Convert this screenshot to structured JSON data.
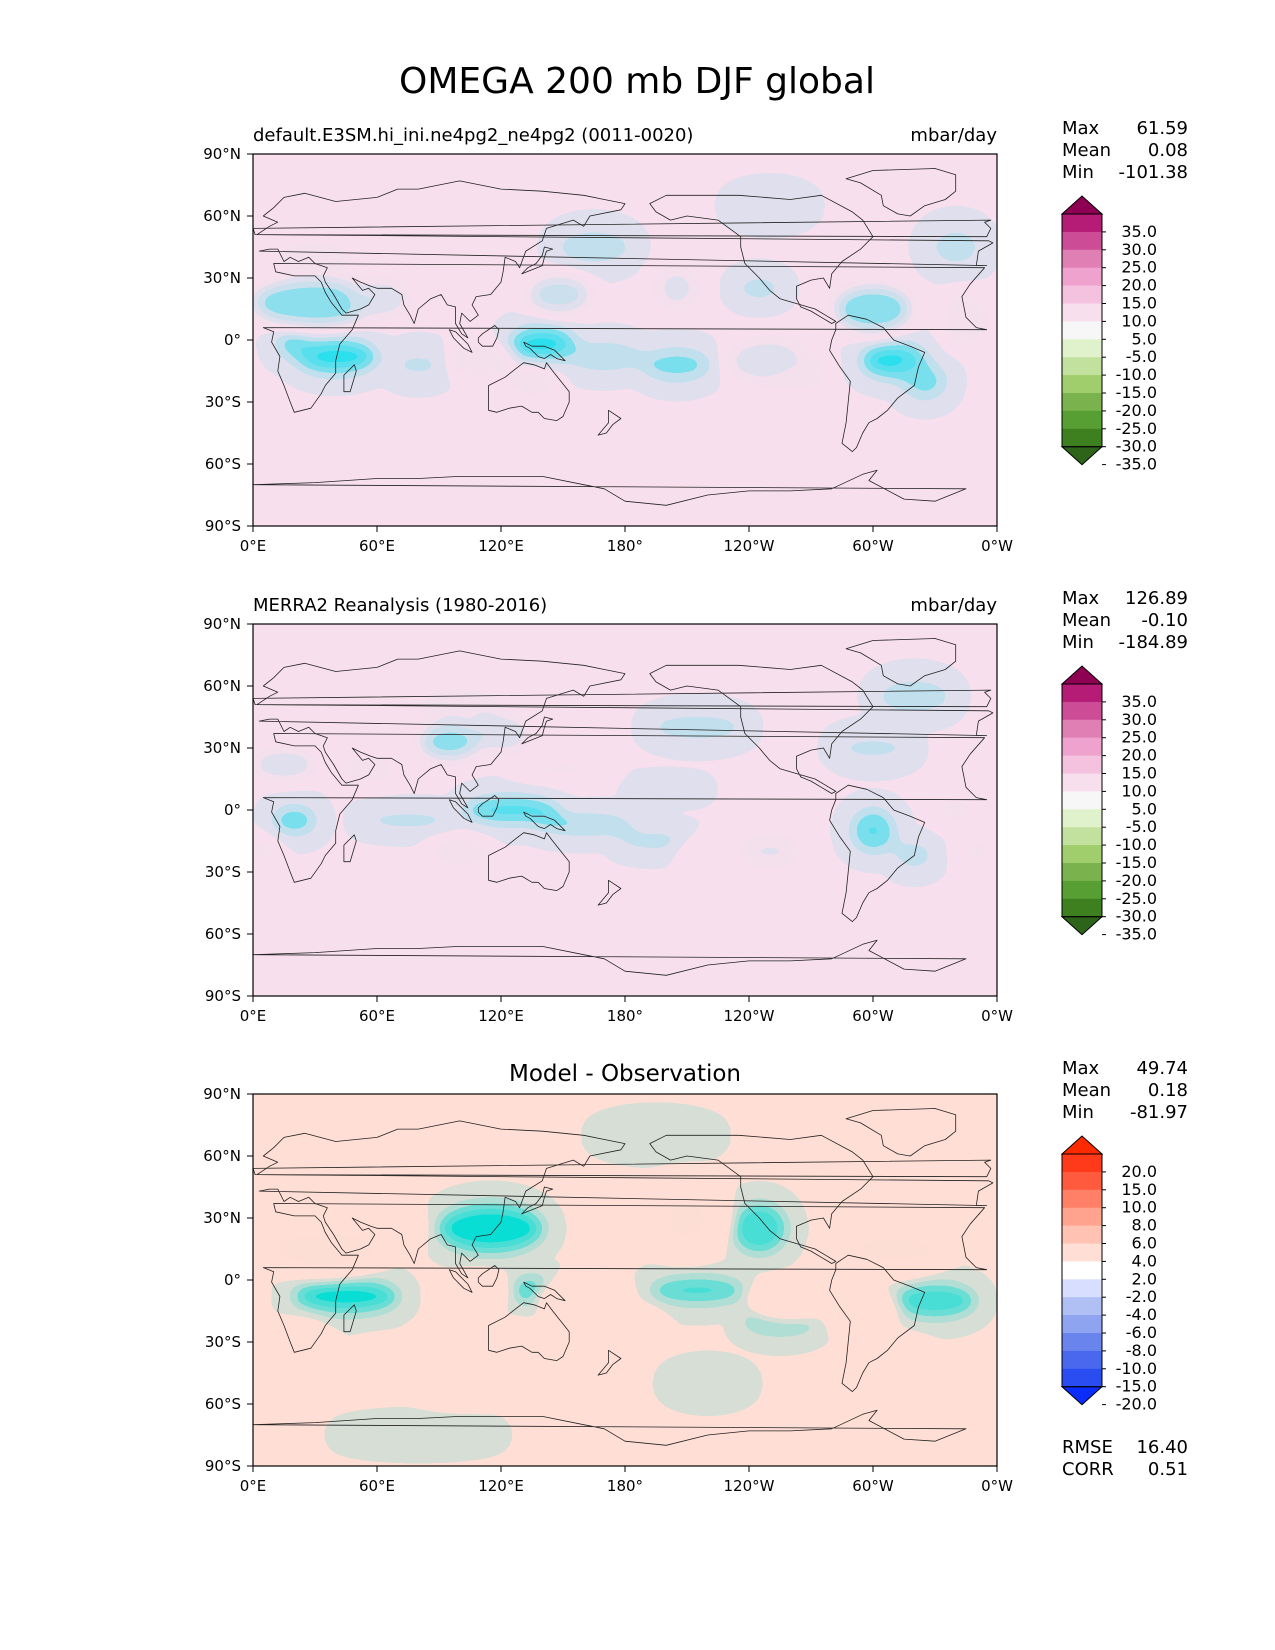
{
  "figure": {
    "title": "OMEGA 200 mb DJF global"
  },
  "axes": {
    "lon_ticks": [
      "0°E",
      "60°E",
      "120°E",
      "180°",
      "120°W",
      "60°W",
      "0°W"
    ],
    "lat_ticks": [
      "90°N",
      "60°N",
      "30°N",
      "0°",
      "30°S",
      "60°S",
      "90°S"
    ]
  },
  "panels": [
    {
      "left_title": "default.E3SM.hi_ini.ne4pg2_ne4pg2 (0011-0020)",
      "center_title": "",
      "units": "mbar/day",
      "stats": [
        {
          "label": "Max",
          "value": "61.59"
        },
        {
          "label": "Mean",
          "value": "0.08"
        },
        {
          "label": "Min",
          "value": "-101.38"
        }
      ],
      "colorbar": {
        "colors": [
          "#2d6419",
          "#3e7f1f",
          "#589f33",
          "#7ab24d",
          "#a1ce6c",
          "#c2e19f",
          "#e0f2cb",
          "#f7f7f7",
          "#f8dfee",
          "#f4c1de",
          "#eea2cd",
          "#df7fb4",
          "#cc4d95",
          "#b41c76",
          "#8e0152"
        ],
        "labels": [
          "35.0",
          "30.0",
          "25.0",
          "20.0",
          "15.0",
          "10.0",
          "5.0",
          "-5.0",
          "-10.0",
          "-15.0",
          "-20.0",
          "-25.0",
          "-30.0",
          "-35.0"
        ]
      }
    },
    {
      "left_title": "MERRA2 Reanalysis (1980-2016)",
      "center_title": "",
      "units": "mbar/day",
      "stats": [
        {
          "label": "Max",
          "value": "126.89"
        },
        {
          "label": "Mean",
          "value": "-0.10"
        },
        {
          "label": "Min",
          "value": "-184.89"
        }
      ],
      "colorbar": {
        "colors": [
          "#2d6419",
          "#3e7f1f",
          "#589f33",
          "#7ab24d",
          "#a1ce6c",
          "#c2e19f",
          "#e0f2cb",
          "#f7f7f7",
          "#f8dfee",
          "#f4c1de",
          "#eea2cd",
          "#df7fb4",
          "#cc4d95",
          "#b41c76",
          "#8e0152"
        ],
        "labels": [
          "35.0",
          "30.0",
          "25.0",
          "20.0",
          "15.0",
          "10.0",
          "5.0",
          "-5.0",
          "-10.0",
          "-15.0",
          "-20.0",
          "-25.0",
          "-30.0",
          "-35.0"
        ]
      }
    },
    {
      "left_title": "",
      "center_title": "Model - Observation",
      "units": "",
      "stats": [
        {
          "label": "Max",
          "value": "49.74"
        },
        {
          "label": "Mean",
          "value": "0.18"
        },
        {
          "label": "Min",
          "value": "-81.97"
        }
      ],
      "bottom_stats": [
        {
          "label": "RMSE",
          "value": "16.40"
        },
        {
          "label": "CORR",
          "value": "0.51"
        }
      ],
      "colorbar": {
        "colors": [
          "#0a2dfa",
          "#2a4df2",
          "#4a68ee",
          "#6a84ee",
          "#8ea4f0",
          "#b1c0f4",
          "#d7deff",
          "#ffffff",
          "#ffded6",
          "#ffc2b3",
          "#ffa38f",
          "#ff8066",
          "#ff5a3d",
          "#ff3a1a",
          "#fd2a00"
        ],
        "labels": [
          "20.0",
          "15.0",
          "10.0",
          "8.0",
          "6.0",
          "4.0",
          "2.0",
          "-2.0",
          "-4.0",
          "-6.0",
          "-8.0",
          "-10.0",
          "-15.0",
          "-20.0"
        ]
      }
    }
  ],
  "chart_data": [
    {
      "type": "heatmap",
      "title": "default.E3SM.hi_ini.ne4pg2_ne4pg2 (0011-0020)",
      "units": "mbar/day",
      "x_ticks": [
        "0°E",
        "60°E",
        "120°E",
        "180°",
        "120°W",
        "60°W",
        "0°W"
      ],
      "y_ticks": [
        "90°N",
        "60°N",
        "30°N",
        "0°",
        "30°S",
        "60°S",
        "90°S"
      ],
      "xlim": [
        0,
        360
      ],
      "ylim": [
        -90,
        90
      ],
      "levels": [
        -35,
        -30,
        -25,
        -20,
        -15,
        -10,
        -5,
        5,
        10,
        15,
        20,
        25,
        30,
        35
      ],
      "features": [
        {
          "lon": 30,
          "lat": 18,
          "w": 30,
          "h": 10,
          "v": 45
        },
        {
          "lon": 60,
          "lat": 20,
          "w": 15,
          "h": 8,
          "v": 25
        },
        {
          "lon": 40,
          "lat": -8,
          "w": 22,
          "h": 10,
          "v": -45
        },
        {
          "lon": 20,
          "lat": -2,
          "w": 10,
          "h": 8,
          "v": -25
        },
        {
          "lon": 140,
          "lat": -2,
          "w": 18,
          "h": 10,
          "v": -45
        },
        {
          "lon": 148,
          "lat": 22,
          "w": 15,
          "h": 8,
          "v": 30
        },
        {
          "lon": 170,
          "lat": -8,
          "w": 20,
          "h": 8,
          "v": -15
        },
        {
          "lon": 205,
          "lat": -12,
          "w": 18,
          "h": 9,
          "v": -20
        },
        {
          "lon": 250,
          "lat": -10,
          "w": 20,
          "h": 10,
          "v": 22
        },
        {
          "lon": 265,
          "lat": -15,
          "w": 12,
          "h": 8,
          "v": 15
        },
        {
          "lon": 205,
          "lat": 25,
          "w": 10,
          "h": 10,
          "v": 20
        },
        {
          "lon": 245,
          "lat": 25,
          "w": 12,
          "h": 6,
          "v": -15
        },
        {
          "lon": 300,
          "lat": 15,
          "w": 18,
          "h": 10,
          "v": 40
        },
        {
          "lon": 310,
          "lat": -10,
          "w": 18,
          "h": 10,
          "v": -40
        },
        {
          "lon": 325,
          "lat": -20,
          "w": 12,
          "h": 10,
          "v": -20
        },
        {
          "lon": 345,
          "lat": 10,
          "w": 10,
          "h": 12,
          "v": 15
        },
        {
          "lon": 110,
          "lat": -10,
          "w": 15,
          "h": 6,
          "v": 18
        },
        {
          "lon": 80,
          "lat": -12,
          "w": 15,
          "h": 8,
          "v": -10
        },
        {
          "lon": 30,
          "lat": 40,
          "w": 20,
          "h": 8,
          "v": 12
        },
        {
          "lon": 135,
          "lat": -20,
          "w": 12,
          "h": 6,
          "v": 15
        },
        {
          "lon": 165,
          "lat": 45,
          "w": 20,
          "h": 10,
          "v": -12
        },
        {
          "lon": 340,
          "lat": 45,
          "w": 15,
          "h": 12,
          "v": -10
        },
        {
          "lon": 250,
          "lat": 65,
          "w": 20,
          "h": 8,
          "v": -8
        }
      ]
    },
    {
      "type": "heatmap",
      "title": "MERRA2 Reanalysis (1980-2016)",
      "units": "mbar/day",
      "x_ticks": [
        "0°E",
        "60°E",
        "120°E",
        "180°",
        "120°W",
        "60°W",
        "0°W"
      ],
      "y_ticks": [
        "90°N",
        "60°N",
        "30°N",
        "0°",
        "30°S",
        "60°S",
        "90°S"
      ],
      "xlim": [
        0,
        360
      ],
      "ylim": [
        -90,
        90
      ],
      "levels": [
        -35,
        -30,
        -25,
        -20,
        -15,
        -10,
        -5,
        5,
        10,
        15,
        20,
        25,
        30,
        35
      ],
      "features": [
        {
          "lon": 15,
          "lat": 22,
          "w": 15,
          "h": 5,
          "v": 30
        },
        {
          "lon": 55,
          "lat": 20,
          "w": 15,
          "h": 5,
          "v": 15
        },
        {
          "lon": 95,
          "lat": 33,
          "w": 14,
          "h": 7,
          "v": 40
        },
        {
          "lon": 120,
          "lat": 37,
          "w": 14,
          "h": 8,
          "v": 25
        },
        {
          "lon": 100,
          "lat": 50,
          "w": 20,
          "h": 8,
          "v": 15
        },
        {
          "lon": 150,
          "lat": 20,
          "w": 25,
          "h": 5,
          "v": 10
        },
        {
          "lon": 20,
          "lat": -5,
          "w": 12,
          "h": 8,
          "v": -25
        },
        {
          "lon": 75,
          "lat": -5,
          "w": 25,
          "h": 4,
          "v": -18
        },
        {
          "lon": 125,
          "lat": 0,
          "w": 25,
          "h": 8,
          "v": -30
        },
        {
          "lon": 160,
          "lat": -7,
          "w": 25,
          "h": 5,
          "v": -25
        },
        {
          "lon": 195,
          "lat": -15,
          "w": 20,
          "h": 5,
          "v": -15
        },
        {
          "lon": 300,
          "lat": -10,
          "w": 12,
          "h": 12,
          "v": -25
        },
        {
          "lon": 320,
          "lat": -22,
          "w": 10,
          "h": 7,
          "v": -15
        },
        {
          "lon": 5,
          "lat": -20,
          "w": 8,
          "h": 6,
          "v": 12
        },
        {
          "lon": 100,
          "lat": -20,
          "w": 14,
          "h": 6,
          "v": 15
        },
        {
          "lon": 250,
          "lat": -20,
          "w": 15,
          "h": 7,
          "v": 18
        },
        {
          "lon": 215,
          "lat": -20,
          "w": 10,
          "h": 5,
          "v": 10
        },
        {
          "lon": 350,
          "lat": -20,
          "w": 8,
          "h": 6,
          "v": 12
        },
        {
          "lon": 340,
          "lat": 0,
          "w": 10,
          "h": 6,
          "v": 12
        },
        {
          "lon": 215,
          "lat": 40,
          "w": 25,
          "h": 8,
          "v": -12
        },
        {
          "lon": 200,
          "lat": 10,
          "w": 20,
          "h": 3,
          "v": -8
        },
        {
          "lon": 320,
          "lat": 55,
          "w": 20,
          "h": 10,
          "v": -12
        },
        {
          "lon": 300,
          "lat": 30,
          "w": 20,
          "h": 8,
          "v": -10
        },
        {
          "lon": 255,
          "lat": 10,
          "w": 18,
          "h": 4,
          "v": 8
        }
      ]
    },
    {
      "type": "heatmap",
      "title": "Model - Observation",
      "units": "",
      "x_ticks": [
        "0°E",
        "60°E",
        "120°E",
        "180°",
        "120°W",
        "60°W",
        "0°W"
      ],
      "y_ticks": [
        "90°N",
        "60°N",
        "30°N",
        "0°",
        "30°S",
        "60°S",
        "90°S"
      ],
      "xlim": [
        0,
        360
      ],
      "ylim": [
        -90,
        90
      ],
      "levels": [
        -20,
        -15,
        -10,
        -8,
        -6,
        -4,
        -2,
        2,
        4,
        6,
        8,
        10,
        15,
        20
      ],
      "features": [
        {
          "lon": 35,
          "lat": 15,
          "w": 28,
          "h": 10,
          "v": 25
        },
        {
          "lon": 70,
          "lat": 25,
          "w": 12,
          "h": 8,
          "v": 12
        },
        {
          "lon": 45,
          "lat": -8,
          "w": 28,
          "h": 10,
          "v": -25
        },
        {
          "lon": 115,
          "lat": 25,
          "w": 28,
          "h": 14,
          "v": -25
        },
        {
          "lon": 135,
          "lat": -5,
          "w": 12,
          "h": 8,
          "v": -18
        },
        {
          "lon": 110,
          "lat": -5,
          "w": 12,
          "h": 6,
          "v": 15
        },
        {
          "lon": 160,
          "lat": -10,
          "w": 20,
          "h": 8,
          "v": 18
        },
        {
          "lon": 180,
          "lat": -20,
          "w": 18,
          "h": 6,
          "v": 10
        },
        {
          "lon": 210,
          "lat": 30,
          "w": 18,
          "h": 18,
          "v": 20
        },
        {
          "lon": 245,
          "lat": 25,
          "w": 15,
          "h": 14,
          "v": -20
        },
        {
          "lon": 215,
          "lat": -5,
          "w": 25,
          "h": 8,
          "v": -18
        },
        {
          "lon": 255,
          "lat": -20,
          "w": 20,
          "h": 8,
          "v": -12
        },
        {
          "lon": 260,
          "lat": -10,
          "w": 18,
          "h": 6,
          "v": 18
        },
        {
          "lon": 295,
          "lat": -15,
          "w": 15,
          "h": 8,
          "v": 15
        },
        {
          "lon": 310,
          "lat": 15,
          "w": 25,
          "h": 10,
          "v": 22
        },
        {
          "lon": 320,
          "lat": 40,
          "w": 18,
          "h": 12,
          "v": 12
        },
        {
          "lon": 330,
          "lat": -10,
          "w": 22,
          "h": 10,
          "v": -20
        },
        {
          "lon": 310,
          "lat": -40,
          "w": 18,
          "h": 12,
          "v": 8
        },
        {
          "lon": 25,
          "lat": -30,
          "w": 12,
          "h": 10,
          "v": 8
        },
        {
          "lon": 60,
          "lat": -40,
          "w": 10,
          "h": 8,
          "v": 6
        },
        {
          "lon": 100,
          "lat": -50,
          "w": 20,
          "h": 8,
          "v": 6
        },
        {
          "lon": 130,
          "lat": -30,
          "w": 15,
          "h": 8,
          "v": 6
        },
        {
          "lon": 220,
          "lat": -50,
          "w": 20,
          "h": 8,
          "v": -5
        },
        {
          "lon": 195,
          "lat": 70,
          "w": 30,
          "h": 8,
          "v": -5
        },
        {
          "lon": 80,
          "lat": -75,
          "w": 40,
          "h": 6,
          "v": -4
        },
        {
          "lon": 50,
          "lat": 55,
          "w": 20,
          "h": 8,
          "v": 5
        }
      ]
    }
  ]
}
